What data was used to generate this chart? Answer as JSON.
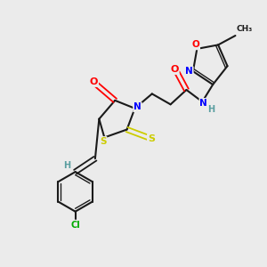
{
  "bg_color": "#ebebeb",
  "atom_colors": {
    "C": "#000000",
    "H": "#5a9ea0",
    "N": "#0000ff",
    "O": "#ff0000",
    "S": "#cccc00",
    "Cl": "#00aa00"
  },
  "bond_color": "#1a1a1a",
  "figsize": [
    3.0,
    3.0
  ],
  "dpi": 100
}
